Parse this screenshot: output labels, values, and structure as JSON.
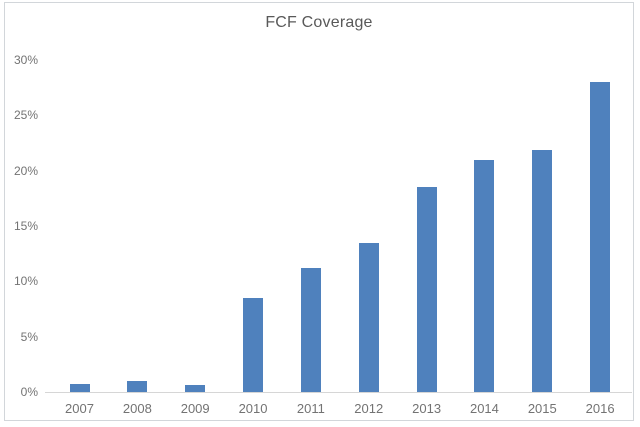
{
  "chart_data": {
    "type": "bar",
    "title": "FCF Coverage",
    "categories": [
      "2007",
      "2008",
      "2009",
      "2010",
      "2011",
      "2012",
      "2013",
      "2014",
      "2015",
      "2016"
    ],
    "values": [
      0.7,
      1.0,
      0.6,
      8.5,
      11.2,
      13.5,
      18.5,
      21.0,
      21.9,
      28.0
    ],
    "unit": "%",
    "xlabel": "",
    "ylabel": "",
    "ylim": [
      0,
      30
    ],
    "yticks": [
      0,
      5,
      10,
      15,
      20,
      25,
      30
    ],
    "ytick_labels": [
      "0%",
      "5%",
      "10%",
      "15%",
      "20%",
      "25%",
      "30%"
    ],
    "grid": false,
    "legend_position": "none",
    "colors": {
      "bar_fill": "#4f81bd",
      "bar_edge": "#6d97c6",
      "axis_line": "#d6d6d6",
      "frame_border": "#d2d6da",
      "tick_label": "#737373",
      "title_text": "#595959",
      "background": "#ffffff"
    }
  }
}
